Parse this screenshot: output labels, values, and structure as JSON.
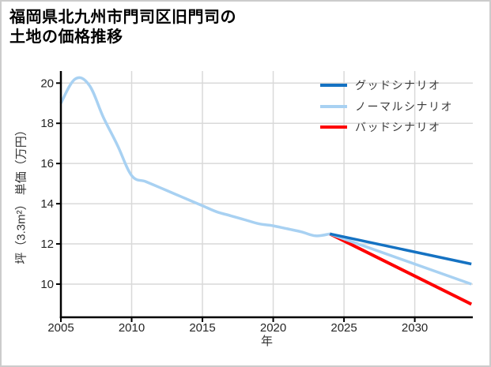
{
  "title": {
    "line1": "福岡県北九州市門司区旧門司の",
    "line2": "土地の価格推移"
  },
  "chart_data": {
    "type": "line",
    "title": "福岡県北九州市門司区旧門司の土地の価格推移",
    "xlabel": "年",
    "ylabel": "坪（3.3m²） 単価（万円）",
    "x_ticks": [
      2005,
      2010,
      2015,
      2020,
      2025,
      2030
    ],
    "y_ticks": [
      10,
      12,
      14,
      16,
      18,
      20
    ],
    "xlim": [
      2005,
      2034.1
    ],
    "ylim": [
      8.35,
      20.6
    ],
    "grid": true,
    "legend_position": "upper right",
    "colors": {
      "good": "#1572c2",
      "normal": "#a8d1f2",
      "bad": "#fe0000",
      "history": "#a8d1f2",
      "gridline": "#d9d9d9",
      "axis": "#000000",
      "frame_border": "#cccccc"
    },
    "legend": [
      {
        "id": "good",
        "label": "グッドシナリオ",
        "color": "#1572c2"
      },
      {
        "id": "normal",
        "label": "ノーマルシナリオ",
        "color": "#a8d1f2"
      },
      {
        "id": "bad",
        "label": "バッドシナリオ",
        "color": "#fe0000"
      }
    ],
    "series": [
      {
        "id": "history",
        "color": "#a8d1f2",
        "x": [
          2005,
          2006,
          2007,
          2008,
          2009,
          2010,
          2011,
          2012,
          2013,
          2014,
          2015,
          2016,
          2017,
          2018,
          2019,
          2020,
          2021,
          2022,
          2023,
          2024
        ],
        "values": [
          19.0,
          20.2,
          19.9,
          18.3,
          16.9,
          15.4,
          15.1,
          14.8,
          14.5,
          14.2,
          13.9,
          13.6,
          13.4,
          13.2,
          13.0,
          12.9,
          12.75,
          12.6,
          12.4,
          12.5
        ]
      },
      {
        "id": "bad",
        "label": "バッドシナリオ",
        "color": "#fe0000",
        "x": [
          2024,
          2034
        ],
        "values": [
          12.5,
          9.0
        ]
      },
      {
        "id": "normal",
        "label": "ノーマルシナリオ",
        "color": "#a8d1f2",
        "x": [
          2024,
          2034
        ],
        "values": [
          12.5,
          10.0
        ]
      },
      {
        "id": "good",
        "label": "グッドシナリオ",
        "color": "#1572c2",
        "x": [
          2024,
          2034
        ],
        "values": [
          12.5,
          11.0
        ]
      }
    ]
  }
}
